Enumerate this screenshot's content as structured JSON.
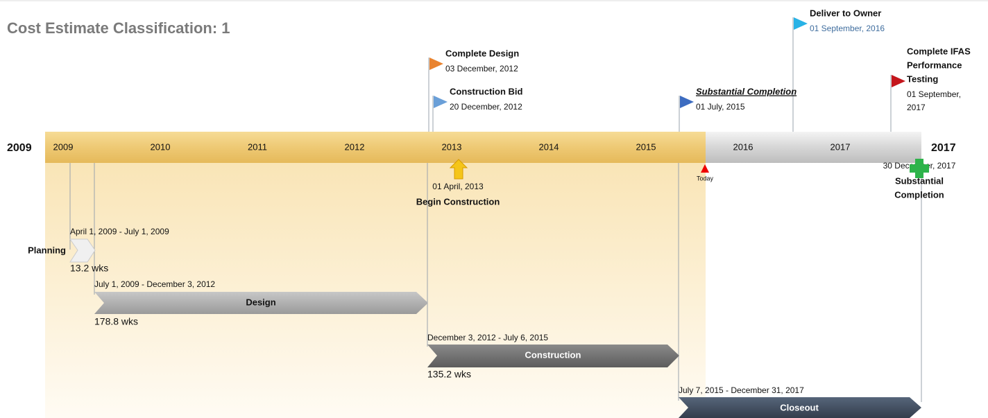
{
  "title": "Cost Estimate Classification:  1",
  "timeline": {
    "start_label": "2009",
    "end_label": "2017",
    "years": [
      "2009",
      "2010",
      "2011",
      "2012",
      "2013",
      "2014",
      "2015",
      "2016",
      "2017"
    ]
  },
  "milestones_above": [
    {
      "title_lines": [
        "Complete Design"
      ],
      "date_lines": [
        "03 December, 2012"
      ]
    },
    {
      "title_lines": [
        "Construction Bid"
      ],
      "date_lines": [
        "20 December, 2012"
      ]
    },
    {
      "title_lines": [
        "Substantial Completion"
      ],
      "date_lines": [
        "01 July, 2015"
      ]
    },
    {
      "title_lines": [
        "Deliver to Owner"
      ],
      "date_lines": [
        "01 September, 2016"
      ]
    },
    {
      "title_lines": [
        "Complete IFAS",
        "Performance",
        "Testing"
      ],
      "date_lines": [
        "01 September,",
        "2017"
      ]
    }
  ],
  "milestones_below": [
    {
      "date": "01 April, 2013",
      "title_lines": [
        "Begin Construction"
      ]
    },
    {
      "date": "30 December, 2017",
      "title_lines": [
        "Substantial",
        "Completion"
      ]
    }
  ],
  "today_label": "Today",
  "tasks": [
    {
      "name": "Planning",
      "dates": "April 1, 2009 - July 1, 2009",
      "duration": "13.2 wks"
    },
    {
      "name": "Design",
      "dates": "July 1, 2009 - December 3, 2012",
      "duration": "178.8 wks"
    },
    {
      "name": "Construction",
      "dates": "December 3, 2012 - July 6, 2015",
      "duration": "135.2 wks"
    },
    {
      "name": "Closeout",
      "dates": "July 7, 2015 - December 31, 2017"
    }
  ]
}
